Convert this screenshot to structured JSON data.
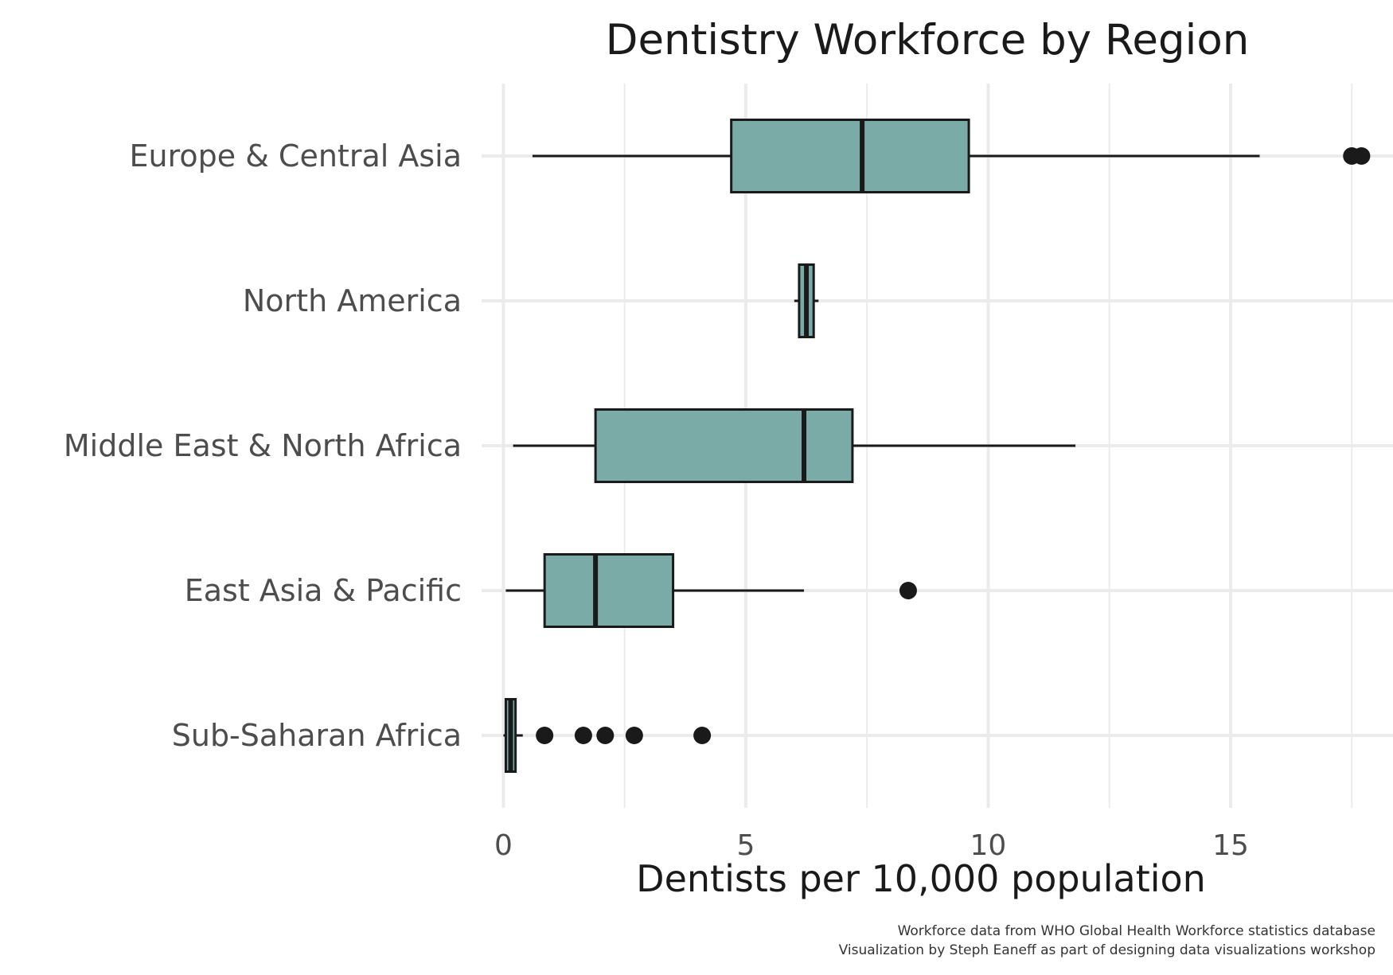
{
  "colors": {
    "box_fill": "#7aaba7",
    "box_stroke": "#1a1a1a",
    "grid": "#ebebeb",
    "outlier": "#1a1a1a",
    "background": "#ffffff"
  },
  "chart_data": {
    "type": "box",
    "orientation": "horizontal",
    "title": "Dentistry Workforce by Region",
    "xlabel": "Dentists per 10,000 population",
    "ylabel": "",
    "xlim": [
      -0.45,
      18.35
    ],
    "x_ticks": [
      0,
      5,
      10,
      15
    ],
    "grid": true,
    "legend": "none",
    "categories": [
      "Europe & Central Asia",
      "North America",
      "Middle East & North Africa",
      "East Asia & Pacific",
      "Sub-Saharan Africa"
    ],
    "boxes": [
      {
        "category": "Europe & Central Asia",
        "whisker_low": 0.6,
        "q1": 4.7,
        "median": 7.4,
        "q3": 9.6,
        "whisker_high": 15.6,
        "outliers": [
          17.5,
          17.7
        ]
      },
      {
        "category": "North America",
        "whisker_low": 6.0,
        "q1": 6.1,
        "median": 6.25,
        "q3": 6.4,
        "whisker_high": 6.5,
        "outliers": []
      },
      {
        "category": "Middle East & North Africa",
        "whisker_low": 0.2,
        "q1": 1.9,
        "median": 6.2,
        "q3": 7.2,
        "whisker_high": 11.8,
        "outliers": []
      },
      {
        "category": "East Asia & Pacific",
        "whisker_low": 0.05,
        "q1": 0.85,
        "median": 1.9,
        "q3": 3.5,
        "whisker_high": 6.2,
        "outliers": [
          8.35
        ]
      },
      {
        "category": "Sub-Saharan Africa",
        "whisker_low": 0.0,
        "q1": 0.05,
        "median": 0.15,
        "q3": 0.25,
        "whisker_high": 0.4,
        "outliers": [
          0.85,
          1.65,
          2.1,
          2.7,
          4.1
        ]
      }
    ],
    "caption": [
      "Workforce data from WHO Global Health Workforce statistics database",
      "Visualization by Steph Eaneff as part of designing data visualizations workshop"
    ]
  }
}
